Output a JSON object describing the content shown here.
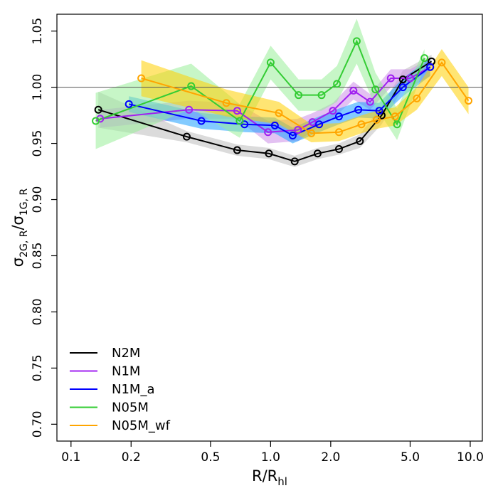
{
  "chart_data": {
    "type": "line",
    "xscale": "log",
    "xlim": [
      0.085,
      11.5
    ],
    "ylim": [
      0.685,
      1.065
    ],
    "x_ticks": [
      0.1,
      0.2,
      0.5,
      1.0,
      2.0,
      5.0,
      10.0
    ],
    "x_tick_labels": [
      "0.1",
      "0.2",
      "0.5",
      "1.0",
      "2.0",
      "5.0",
      "10.0"
    ],
    "y_ticks": [
      0.7,
      0.75,
      0.8,
      0.85,
      0.9,
      0.95,
      1.0,
      1.05
    ],
    "y_tick_labels": [
      "0.70",
      "0.75",
      "0.80",
      "0.85",
      "0.90",
      "0.95",
      "1.00",
      "1.05"
    ],
    "xlabel": {
      "main": "R/R",
      "sub": "hl"
    },
    "ylabel": {
      "sigma1": "σ",
      "sub1": "2G, R",
      "slash": "/",
      "sigma2": "σ",
      "sub2": "1G, R"
    },
    "reference_line": 1.0,
    "legend_position": "bottom-left",
    "series": [
      {
        "name": "N2M",
        "color": "#000000",
        "band_color": "#bdbdbd",
        "x": [
          0.137,
          0.38,
          0.68,
          0.98,
          1.32,
          1.72,
          2.2,
          2.8,
          3.6,
          4.6,
          6.4
        ],
        "y": [
          0.98,
          0.956,
          0.944,
          0.941,
          0.934,
          0.941,
          0.945,
          0.952,
          0.975,
          1.007,
          1.023
        ],
        "err": [
          0.016,
          0.005,
          0.005,
          0.005,
          0.005,
          0.005,
          0.005,
          0.006,
          0.008,
          0.008,
          0.006
        ]
      },
      {
        "name": "N1M",
        "color": "#a020f0",
        "band_color": "#cc8ee8",
        "x": [
          0.14,
          0.39,
          0.68,
          0.97,
          1.37,
          1.62,
          2.05,
          2.6,
          3.15,
          4.0,
          5.0,
          6.3
        ],
        "y": [
          0.972,
          0.98,
          0.979,
          0.96,
          0.962,
          0.969,
          0.979,
          0.997,
          0.987,
          1.008,
          1.008,
          1.018
        ],
        "err": [
          0.008,
          0.008,
          0.007,
          0.01,
          0.01,
          0.008,
          0.007,
          0.008,
          0.007,
          0.008,
          0.008,
          0.008
        ]
      },
      {
        "name": "N1M_a",
        "color": "#0000ff",
        "band_color": "#1ea0ff",
        "x": [
          0.195,
          0.45,
          0.74,
          1.05,
          1.29,
          1.75,
          2.2,
          2.75,
          3.5,
          4.6,
          6.3
        ],
        "y": [
          0.985,
          0.97,
          0.967,
          0.966,
          0.957,
          0.967,
          0.974,
          0.98,
          0.979,
          1.0,
          1.018
        ],
        "err": [
          0.007,
          0.007,
          0.007,
          0.007,
          0.007,
          0.007,
          0.007,
          0.007,
          0.007,
          0.008,
          0.008
        ]
      },
      {
        "name": "N05M",
        "color": "#33cc33",
        "band_color": "#99ee99",
        "x": [
          0.133,
          0.4,
          0.7,
          1.0,
          1.38,
          1.8,
          2.15,
          2.7,
          3.35,
          4.3,
          5.9
        ],
        "y": [
          0.97,
          1.001,
          0.97,
          1.022,
          0.993,
          0.993,
          1.003,
          1.041,
          0.998,
          0.967,
          1.026
        ],
        "err": [
          0.025,
          0.02,
          0.015,
          0.015,
          0.014,
          0.014,
          0.016,
          0.02,
          0.015,
          0.014,
          0.008
        ]
      },
      {
        "name": "N05M_wf",
        "color": "#ffa500",
        "band_color": "#ffd000",
        "x": [
          0.225,
          0.6,
          1.1,
          1.6,
          2.2,
          2.85,
          3.4,
          4.2,
          5.4,
          7.2,
          9.8
        ],
        "y": [
          1.008,
          0.986,
          0.977,
          0.959,
          0.96,
          0.967,
          0.971,
          0.974,
          0.99,
          1.022,
          0.988
        ],
        "err": [
          0.016,
          0.012,
          0.01,
          0.008,
          0.008,
          0.008,
          0.008,
          0.008,
          0.01,
          0.012,
          0.012
        ]
      }
    ]
  }
}
